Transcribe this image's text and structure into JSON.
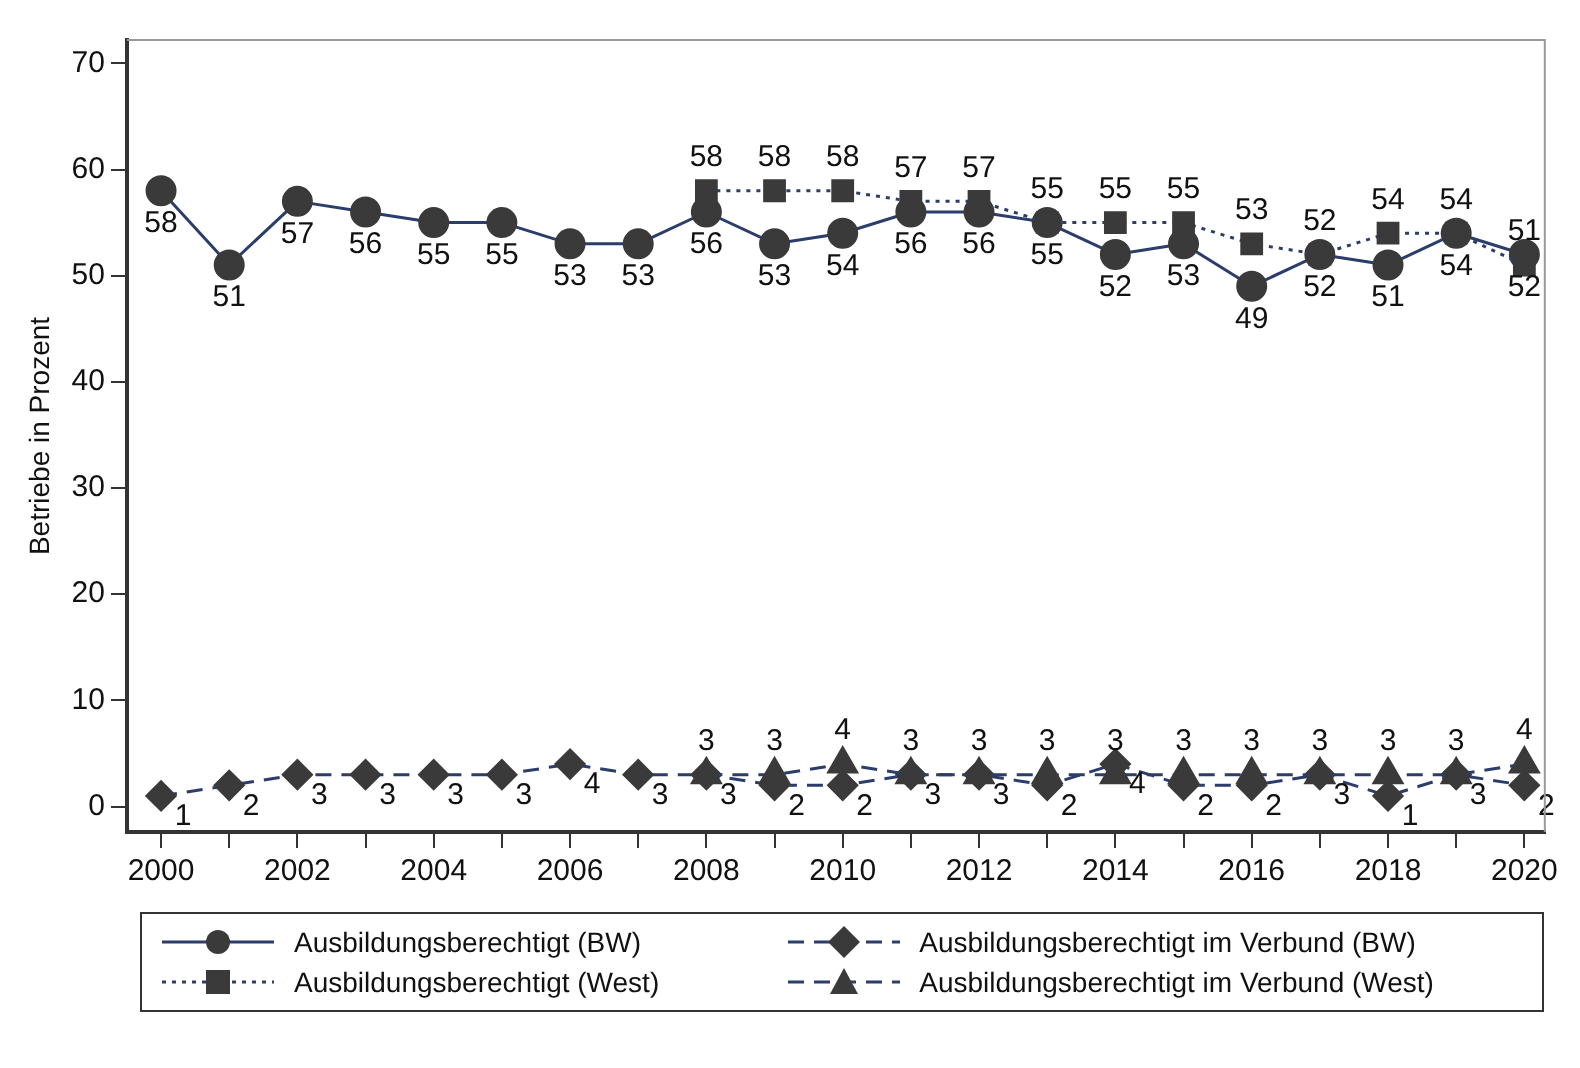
{
  "chart_data": {
    "type": "line",
    "ylabel": "Betriebe in Prozent",
    "x": [
      2000,
      2001,
      2002,
      2003,
      2004,
      2005,
      2006,
      2007,
      2008,
      2009,
      2010,
      2011,
      2012,
      2013,
      2014,
      2015,
      2016,
      2017,
      2018,
      2019,
      2020
    ],
    "series": [
      {
        "name": "Ausbildungsberechtigt (BW)",
        "color": "#2b3d6b",
        "marker": "circle",
        "line_style": "solid",
        "values": [
          58,
          51,
          57,
          56,
          55,
          55,
          53,
          53,
          56,
          53,
          54,
          56,
          56,
          55,
          52,
          53,
          49,
          52,
          51,
          54,
          52
        ]
      },
      {
        "name": "Ausbildungsberechtigt (West)",
        "color": "#2b3d6b",
        "marker": "square",
        "line_style": "dotted",
        "x": [
          2008,
          2009,
          2010,
          2011,
          2012,
          2013,
          2014,
          2015,
          2016,
          2017,
          2018,
          2019,
          2020
        ],
        "values": [
          58,
          58,
          58,
          57,
          57,
          55,
          55,
          55,
          53,
          52,
          54,
          54,
          51
        ]
      },
      {
        "name": "Ausbildungsberechtigt im Verbund (BW)",
        "color": "#2b3d6b",
        "marker": "diamond",
        "line_style": "dashed",
        "values": [
          1,
          2,
          3,
          3,
          3,
          3,
          4,
          3,
          3,
          2,
          2,
          3,
          3,
          2,
          4,
          2,
          2,
          3,
          1,
          3,
          2
        ]
      },
      {
        "name": "Ausbildungsberechtigt im Verbund (West)",
        "color": "#2b3d6b",
        "marker": "triangle",
        "line_style": "dashed",
        "x": [
          2008,
          2009,
          2010,
          2011,
          2012,
          2013,
          2014,
          2015,
          2016,
          2017,
          2018,
          2019,
          2020
        ],
        "values": [
          3,
          3,
          4,
          3,
          3,
          3,
          3,
          3,
          3,
          3,
          3,
          3,
          4
        ]
      }
    ],
    "xlim": [
      1999.5,
      2020.3
    ],
    "xticks": [
      2000,
      {
        "value": 2001,
        "label": null
      },
      2002,
      {
        "value": 2003,
        "label": null
      },
      2004,
      {
        "value": 2005,
        "label": null
      },
      2006,
      {
        "value": 2007,
        "label": null
      },
      2008,
      {
        "value": 2009,
        "label": null
      },
      2010,
      {
        "value": 2011,
        "label": null
      },
      2012,
      {
        "value": 2013,
        "label": null
      },
      2014,
      {
        "value": 2015,
        "label": null
      },
      2016,
      {
        "value": 2017,
        "label": null
      },
      2018,
      {
        "value": 2019,
        "label": null
      },
      2020
    ],
    "ylim": [
      -2.4,
      72.2
    ],
    "yticks": [
      0,
      10,
      20,
      30,
      40,
      50,
      60,
      70
    ],
    "grid": false,
    "legend": "bottom",
    "data_labels": true
  }
}
